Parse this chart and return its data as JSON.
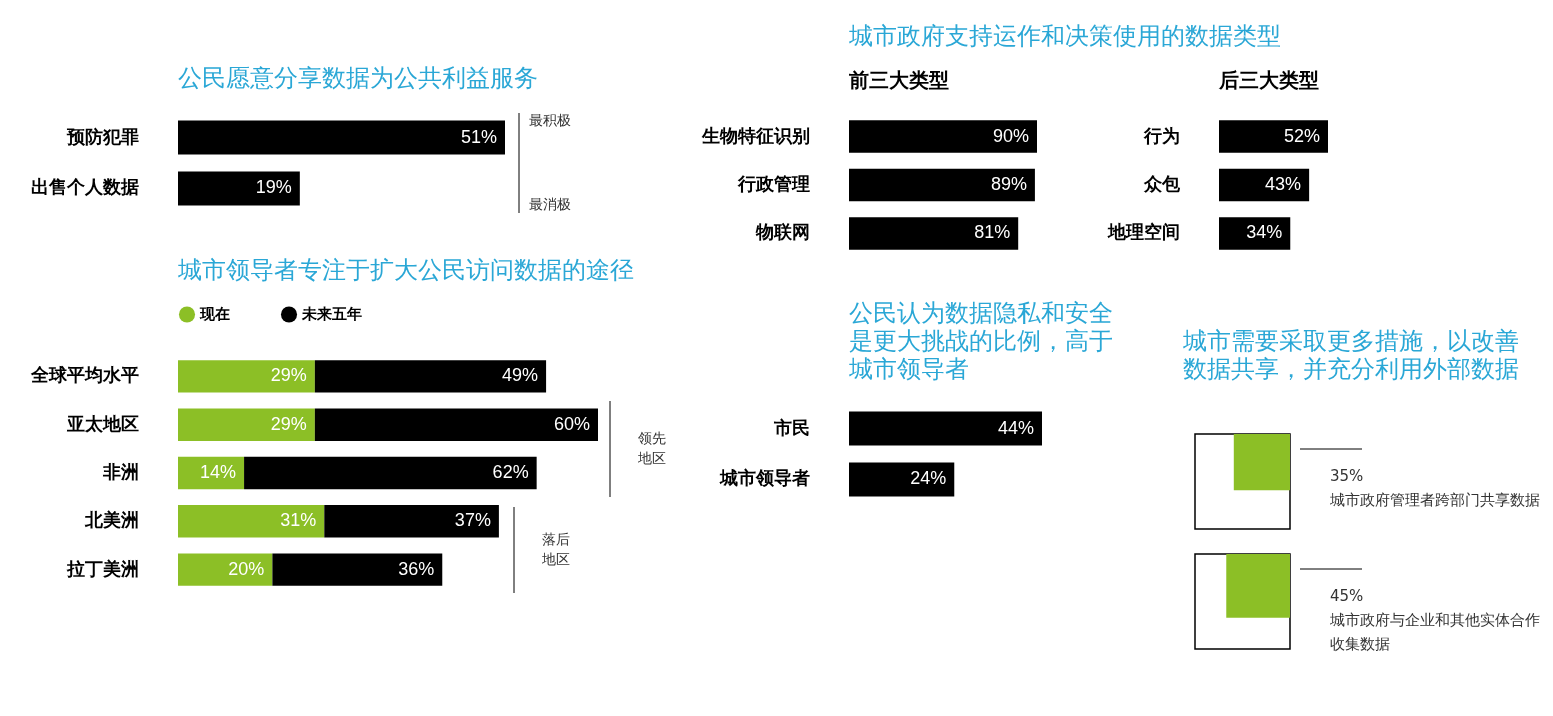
{
  "chart_data": [
    {
      "type": "bar",
      "orientation": "horizontal",
      "title": "公民愿意分享数据为公共利益服务",
      "categories": [
        "预防犯罪",
        "出售个人数据"
      ],
      "values": [
        51,
        19
      ],
      "color": "#000000",
      "value_labels": [
        "51%",
        "19%"
      ],
      "annotations": [
        "最积极",
        "最消极"
      ]
    },
    {
      "type": "bar",
      "orientation": "horizontal",
      "title": "城市政府支持运作和决策使用的数据类型",
      "subtitle": "前三大类型",
      "categories": [
        "生物特征识别",
        "行政管理",
        "物联网"
      ],
      "values": [
        90,
        89,
        81
      ],
      "color": "#000000",
      "value_labels": [
        "90%",
        "89%",
        "81%"
      ]
    },
    {
      "type": "bar",
      "orientation": "horizontal",
      "title": "后三大类型",
      "categories": [
        "行为",
        "众包",
        "地理空间"
      ],
      "values": [
        52,
        43,
        34
      ],
      "color": "#000000",
      "value_labels": [
        "52%",
        "43%",
        "34%"
      ]
    },
    {
      "type": "bar",
      "orientation": "horizontal",
      "stacked": true,
      "title": "城市领导者专注于扩大公民访问数据的途径",
      "legend": "top left",
      "categories": [
        "全球平均水平",
        "亚太地区",
        "非洲",
        "北美洲",
        "拉丁美洲"
      ],
      "series": [
        {
          "name": "现在",
          "color": "#8cbf26",
          "values": [
            29,
            29,
            14,
            31,
            20
          ],
          "value_labels": [
            "29%",
            "29%",
            "14%",
            "31%",
            "20%"
          ]
        },
        {
          "name": "未来五年",
          "color": "#000000",
          "values": [
            49,
            60,
            62,
            37,
            36
          ],
          "value_labels": [
            "49%",
            "60%",
            "62%",
            "37%",
            "36%"
          ]
        }
      ],
      "annotations": [
        "领先地区",
        "落后地区"
      ]
    },
    {
      "type": "bar",
      "orientation": "horizontal",
      "title": "公民认为数据隐私和安全是更大挑战的比例，高于城市领导者",
      "categories": [
        "市民",
        "城市领导者"
      ],
      "values": [
        44,
        24
      ],
      "color": "#000000",
      "value_labels": [
        "44%",
        "24%"
      ]
    },
    {
      "type": "other",
      "title": "城市需要采取更多措施，以改善数据共享，并充分利用外部数据",
      "categories": [
        "城市政府管理者跨部门共享数据",
        "城市政府与企业和其他实体合作收集数据"
      ],
      "values": [
        35,
        45
      ],
      "value_labels": [
        "35%",
        "45%"
      ],
      "colors": [
        "#8cbf26",
        "#8cbf26"
      ]
    }
  ]
}
